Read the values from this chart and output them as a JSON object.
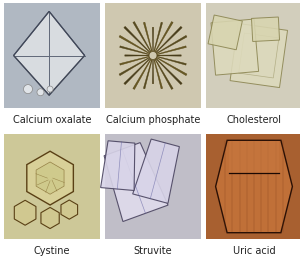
{
  "labels": [
    [
      "Calcium oxalate",
      "Calcium phosphate",
      "Cholesterol"
    ],
    [
      "Cystine",
      "Struvite",
      "Uric acid"
    ]
  ],
  "bg_colors": [
    [
      "#b8bec5",
      "#cec8b4",
      "#d5d2c0"
    ],
    [
      "#cdc99a",
      "#c5c2cb",
      "#a86830"
    ]
  ],
  "label_fontsize": 7.0,
  "label_color": "#222222",
  "figsize": [
    3.0,
    2.6
  ],
  "dpi": 100
}
